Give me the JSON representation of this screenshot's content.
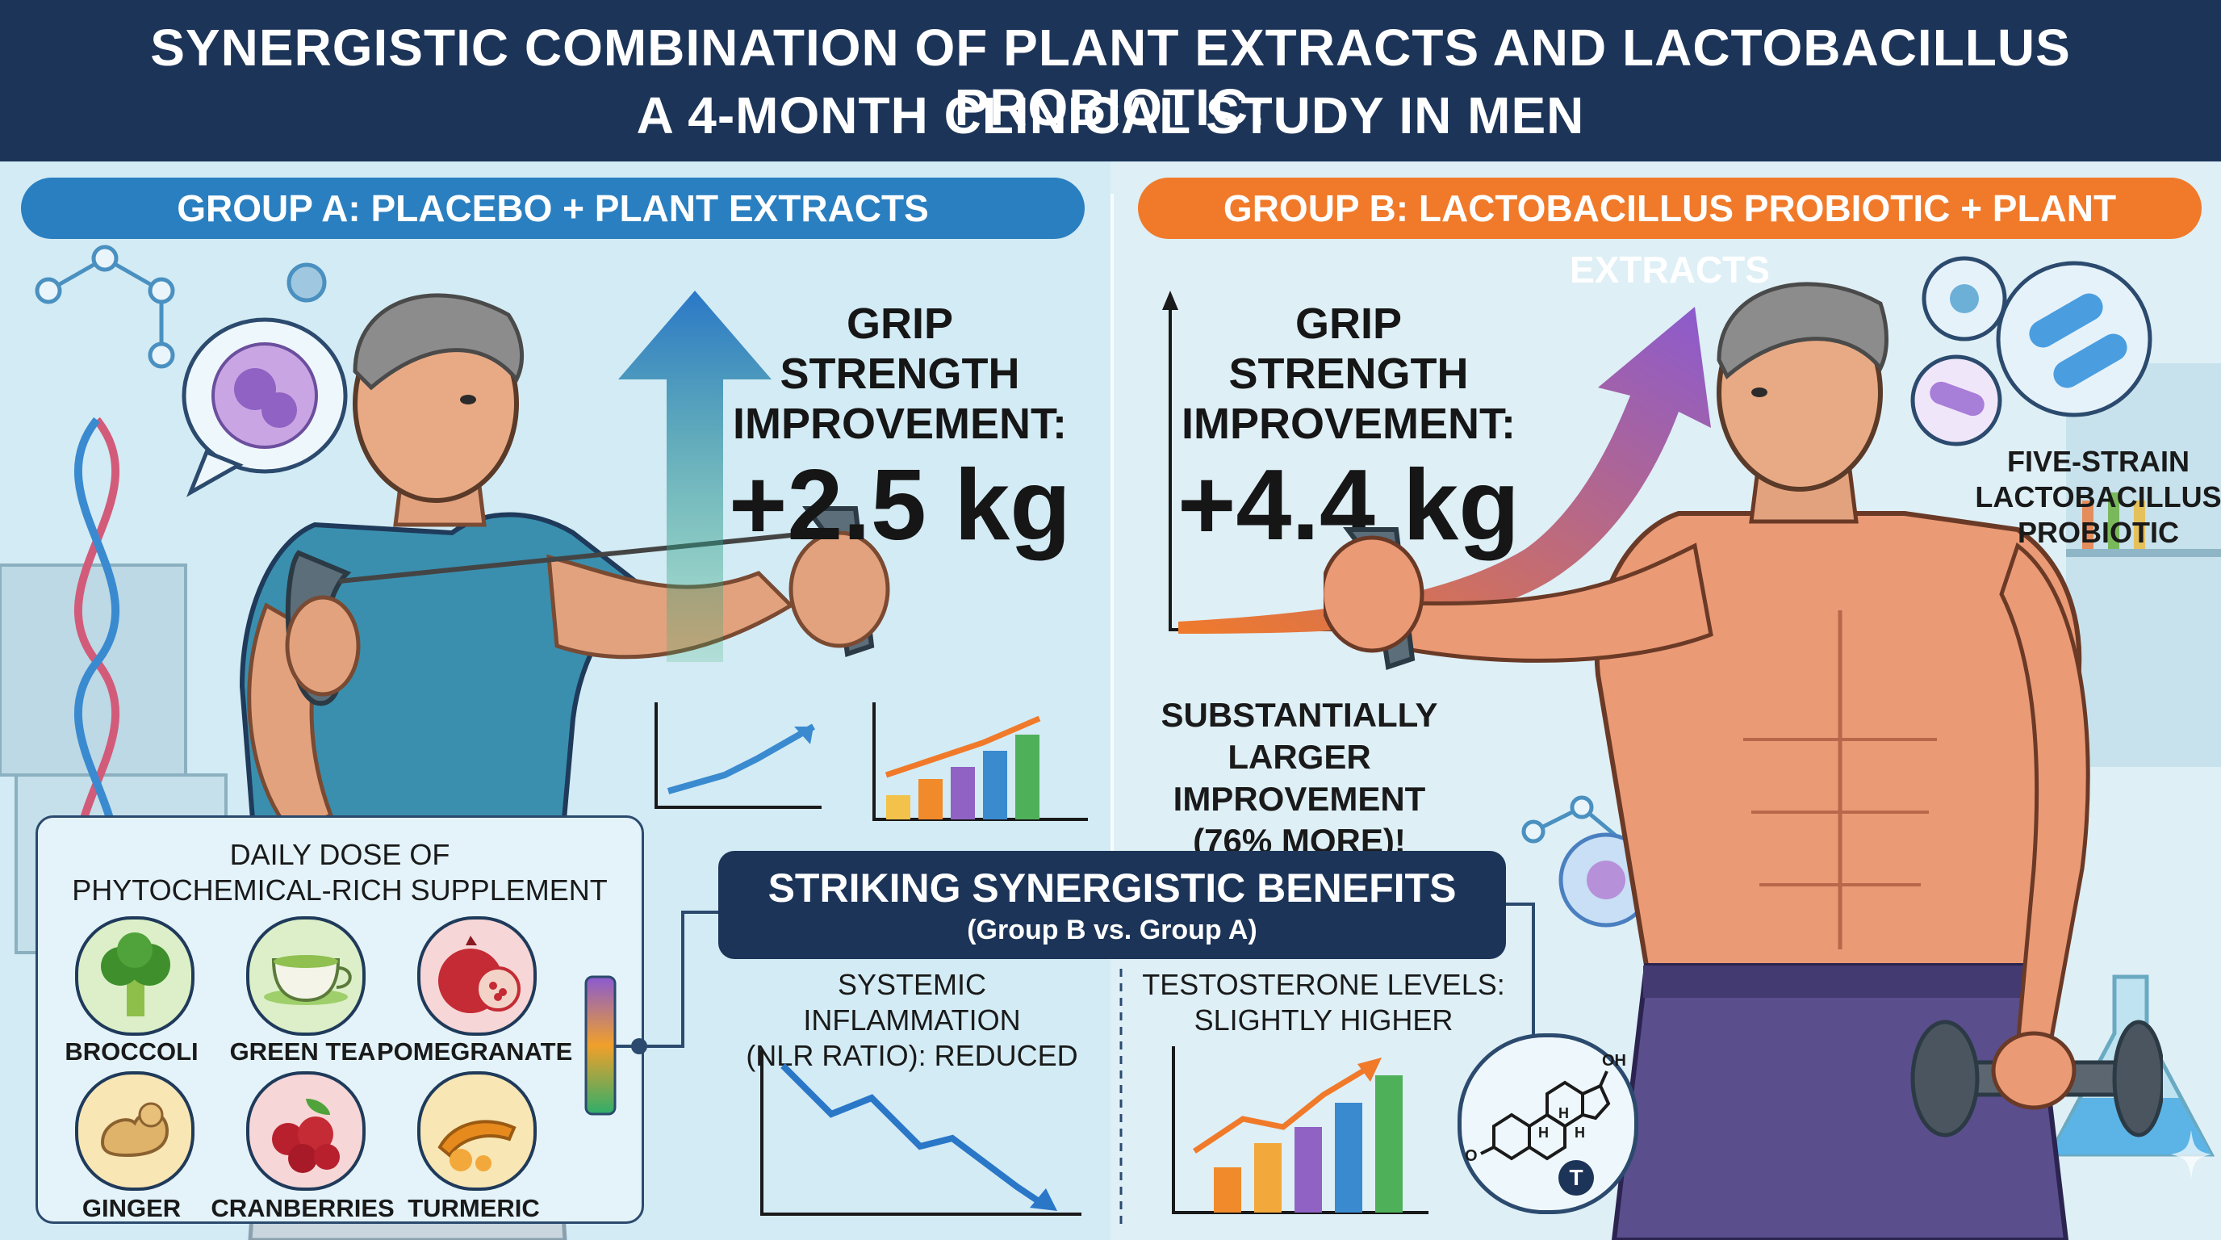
{
  "header": {
    "title_line1": "SYNERGISTIC COMBINATION OF PLANT EXTRACTS AND LACTOBACILLUS PROBIOTIC:",
    "title_line2": "A 4-MONTH CLINICAL STUDY IN MEN"
  },
  "group_a": {
    "banner": "GROUP A: PLACEBO + PLANT EXTRACTS",
    "grip_line1": "GRIP STRENGTH",
    "grip_line2": "IMPROVEMENT:",
    "grip_value": "+2.5 kg"
  },
  "group_b": {
    "banner": "GROUP B: LACTOBACILLUS PROBIOTIC + PLANT EXTRACTS",
    "grip_line1": "GRIP STRENGTH",
    "grip_line2": "IMPROVEMENT:",
    "grip_value": "+4.4 kg",
    "comparison_line1": "SUBSTANTIALLY",
    "comparison_line2": "LARGER IMPROVEMENT",
    "comparison_line3": "(76% MORE)!",
    "probiotic_line1": "FIVE-STRAIN",
    "probiotic_line2": "LACTOBACILLUS",
    "probiotic_line3": "PROBIOTIC"
  },
  "supplement": {
    "title_line1": "DAILY DOSE OF",
    "title_line2": "PHYTOCHEMICAL-RICH SUPPLEMENT",
    "items": [
      {
        "label": "BROCCOLI",
        "icon": "broccoli-icon"
      },
      {
        "label": "GREEN TEA",
        "icon": "green-tea-icon"
      },
      {
        "label": "POMEGRANATE",
        "icon": "pomegranate-icon"
      },
      {
        "label": "GINGER",
        "icon": "ginger-icon"
      },
      {
        "label": "CRANBERRIES",
        "icon": "cranberries-icon"
      },
      {
        "label": "TURMERIC",
        "icon": "turmeric-icon"
      }
    ]
  },
  "benefits": {
    "title": "STRIKING SYNERGISTIC BENEFITS",
    "subtitle": "(Group B vs. Group A)",
    "inflammation_line1": "SYSTEMIC INFLAMMATION",
    "inflammation_line2": "(NLR RATIO): REDUCED",
    "testosterone_line1": "TESTOSTERONE LEVELS:",
    "testosterone_line2": "SLIGHTLY HIGHER",
    "molecule_label_oh": "OH",
    "molecule_label_h1": "H",
    "molecule_label_h2": "H",
    "molecule_label_h3": "H",
    "molecule_label_o": "O",
    "molecule_badge": "T"
  },
  "colors": {
    "header_bg": "#1c3458",
    "group_a_banner": "#2a7fc0",
    "group_b_banner": "#f07a2a",
    "background": "#d6ecf4"
  }
}
